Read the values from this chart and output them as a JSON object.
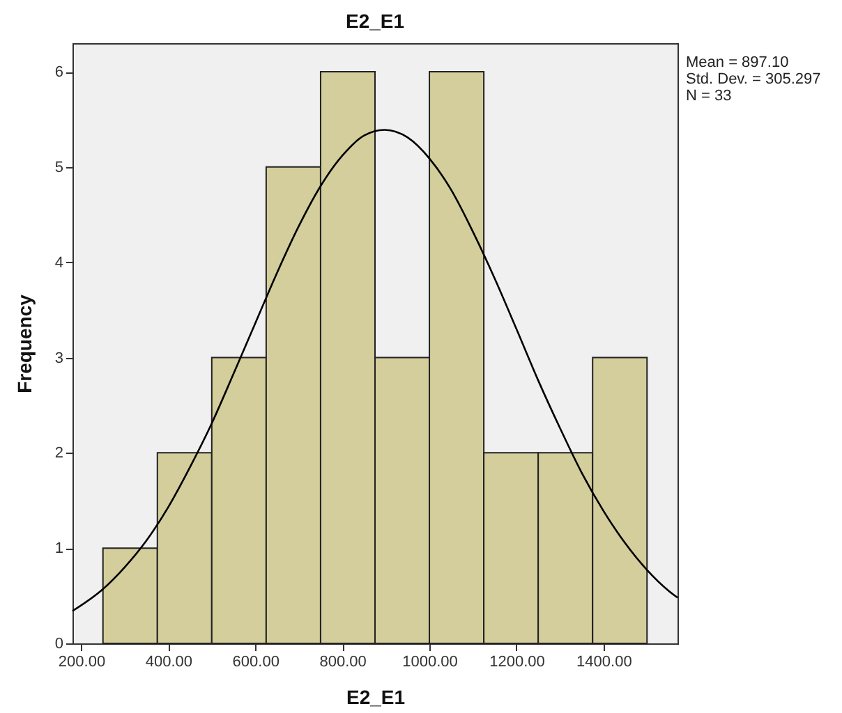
{
  "chart_data": {
    "type": "histogram",
    "title": "E2_E1",
    "xlabel": "E2_E1",
    "ylabel": "Frequency",
    "bins": [
      250,
      375,
      500,
      625,
      750,
      875,
      1000,
      1125,
      1250,
      1375,
      1500
    ],
    "values": [
      1,
      2,
      3,
      5,
      6,
      3,
      6,
      2,
      2,
      3
    ],
    "color": "#d3ce9b",
    "series": [
      {
        "type": "line",
        "color": "#000000",
        "x": [
          180,
          250,
          300,
          350,
          400,
          450,
          500,
          550,
          600,
          650,
          700,
          750,
          800,
          850,
          897.1,
          950,
          1000,
          1050,
          1100,
          1150,
          1200,
          1250,
          1300,
          1350,
          1400,
          1450,
          1500,
          1550,
          1570
        ],
        "values": [
          0.34,
          0.57,
          0.8,
          1.08,
          1.43,
          1.85,
          2.31,
          2.83,
          3.36,
          3.89,
          4.38,
          4.8,
          5.12,
          5.33,
          5.39,
          5.31,
          5.09,
          4.76,
          4.32,
          3.83,
          3.3,
          2.76,
          2.26,
          1.79,
          1.39,
          1.05,
          0.77,
          0.55,
          0.48
        ]
      }
    ],
    "xlim": [
      180,
      1570
    ],
    "xticks": [
      {
        "value": 200,
        "label": "200.00"
      },
      {
        "value": 400,
        "label": "400.00"
      },
      {
        "value": 600,
        "label": "600.00"
      },
      {
        "value": 800,
        "label": "800.00"
      },
      {
        "value": 1000,
        "label": "1000.00"
      },
      {
        "value": 1200,
        "label": "1200.00"
      },
      {
        "value": 1400,
        "label": "1400.00"
      }
    ],
    "ylim": [
      0,
      6.3
    ],
    "yticks": [
      0,
      1,
      2,
      3,
      4,
      5,
      6
    ],
    "grid": false,
    "annotations": [
      "Mean = 897.10",
      "Std. Dev. = 305.297",
      "N = 33"
    ]
  }
}
